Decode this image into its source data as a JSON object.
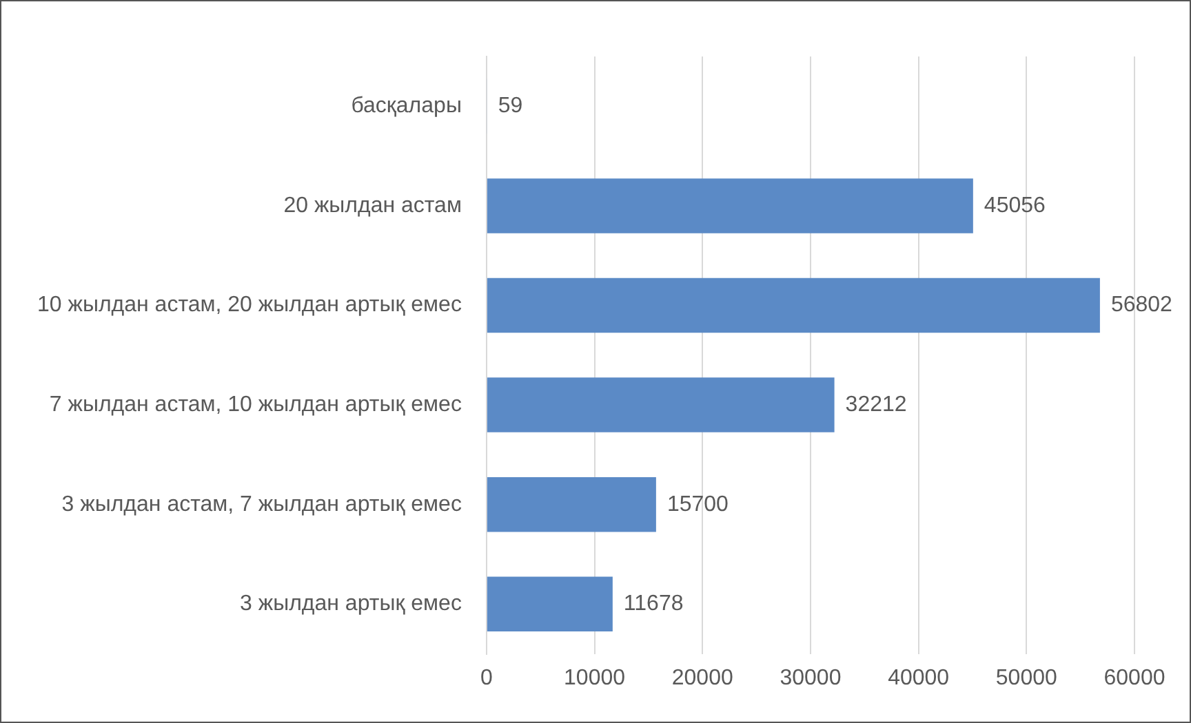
{
  "chart_data": {
    "type": "bar",
    "orientation": "horizontal",
    "categories": [
      "басқалары",
      "20 жылдан астам",
      "10 жылдан астам, 20 жылдан артық емес",
      "7 жылдан астам, 10 жылдан артық емес",
      "3 жылдан астам, 7 жылдан артық емес",
      "3 жылдан артық емес"
    ],
    "values": [
      59,
      45056,
      56802,
      32212,
      15700,
      11678
    ],
    "color": "#5b8ac6",
    "xlim": [
      0,
      60000
    ],
    "xticks": [
      0,
      10000,
      20000,
      30000,
      40000,
      50000,
      60000
    ],
    "grid": "x",
    "legend": false,
    "data_labels": true
  }
}
